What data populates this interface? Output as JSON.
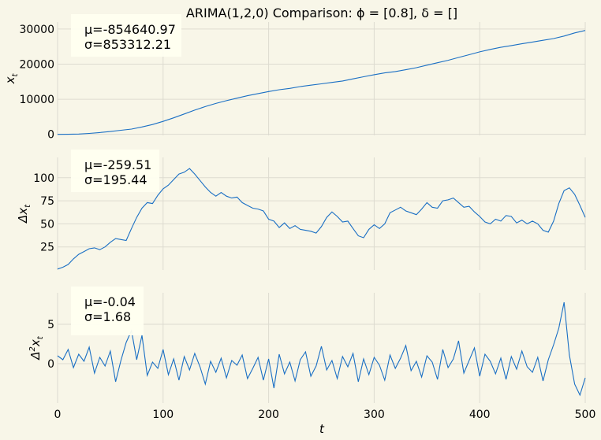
{
  "figure": {
    "title": "ARIMA(1,2,0) Comparison: ϕ = [0.8], δ = []",
    "xlabel": "t"
  },
  "chart_data": [
    {
      "type": "line",
      "ylabel": "x_t",
      "xlim": [
        0,
        500
      ],
      "ylim": [
        -300,
        32000
      ],
      "yticks": [
        0,
        10000,
        20000,
        30000
      ],
      "stats": [
        "μ=-854640.97",
        "σ=853312.21"
      ],
      "series": [
        {
          "color": "#1a6fc4",
          "x": [
            0,
            10,
            20,
            30,
            40,
            50,
            60,
            70,
            80,
            90,
            100,
            110,
            120,
            130,
            140,
            150,
            160,
            170,
            180,
            190,
            200,
            210,
            220,
            230,
            240,
            250,
            260,
            270,
            280,
            290,
            300,
            310,
            320,
            330,
            340,
            350,
            360,
            370,
            380,
            390,
            400,
            410,
            420,
            430,
            440,
            450,
            460,
            470,
            480,
            490,
            500
          ],
          "y": [
            0,
            20,
            80,
            250,
            500,
            800,
            1150,
            1500,
            2100,
            2800,
            3700,
            4700,
            5800,
            6900,
            7900,
            8800,
            9600,
            10300,
            11000,
            11600,
            12200,
            12700,
            13100,
            13600,
            14000,
            14400,
            14800,
            15200,
            15800,
            16400,
            17000,
            17500,
            17900,
            18400,
            19000,
            19700,
            20400,
            21100,
            21900,
            22700,
            23500,
            24200,
            24800,
            25300,
            25800,
            26300,
            26800,
            27300,
            28000,
            28900,
            29600
          ]
        }
      ]
    },
    {
      "type": "line",
      "ylabel": "Δx_t",
      "xlim": [
        0,
        500
      ],
      "ylim": [
        0,
        122
      ],
      "yticks": [
        25,
        50,
        75,
        100
      ],
      "stats": [
        "μ=-259.51",
        "σ=195.44"
      ],
      "series": [
        {
          "color": "#1a6fc4",
          "x": [
            0,
            5,
            10,
            15,
            20,
            25,
            30,
            35,
            40,
            45,
            50,
            55,
            60,
            65,
            70,
            75,
            80,
            85,
            90,
            95,
            100,
            105,
            110,
            115,
            120,
            125,
            130,
            135,
            140,
            145,
            150,
            155,
            160,
            165,
            170,
            175,
            180,
            185,
            190,
            195,
            200,
            205,
            210,
            215,
            220,
            225,
            230,
            235,
            240,
            245,
            250,
            255,
            260,
            265,
            270,
            275,
            280,
            285,
            290,
            295,
            300,
            305,
            310,
            315,
            320,
            325,
            330,
            335,
            340,
            345,
            350,
            355,
            360,
            365,
            370,
            375,
            380,
            385,
            390,
            395,
            400,
            405,
            410,
            415,
            420,
            425,
            430,
            435,
            440,
            445,
            450,
            455,
            460,
            465,
            470,
            475,
            480,
            485,
            490,
            495,
            500
          ],
          "y": [
            1,
            3,
            6,
            12,
            17,
            20,
            23,
            24,
            22,
            25,
            30,
            34,
            33,
            32,
            45,
            57,
            67,
            73,
            72,
            81,
            88,
            92,
            98,
            104,
            106,
            110,
            104,
            97,
            90,
            84,
            80,
            84,
            80,
            78,
            79,
            73,
            70,
            67,
            66,
            64,
            55,
            53,
            46,
            51,
            45,
            48,
            44,
            43,
            42,
            40,
            47,
            57,
            63,
            58,
            52,
            53,
            45,
            37,
            35,
            44,
            49,
            45,
            50,
            62,
            65,
            68,
            64,
            62,
            60,
            66,
            73,
            68,
            67,
            75,
            76,
            78,
            73,
            68,
            69,
            63,
            58,
            52,
            50,
            55,
            53,
            59,
            58,
            51,
            54,
            50,
            53,
            50,
            43,
            41,
            53,
            72,
            86,
            89,
            82,
            70,
            57
          ]
        }
      ]
    },
    {
      "type": "line",
      "ylabel": "Δ²x_t",
      "xlim": [
        0,
        500
      ],
      "ylim": [
        -5,
        9
      ],
      "yticks": [
        0,
        5
      ],
      "stats": [
        "μ=-0.04",
        "σ=1.68"
      ],
      "series": [
        {
          "color": "#1a6fc4",
          "x": [
            0,
            5,
            10,
            15,
            20,
            25,
            30,
            35,
            40,
            45,
            50,
            55,
            60,
            65,
            70,
            75,
            80,
            85,
            90,
            95,
            100,
            105,
            110,
            115,
            120,
            125,
            130,
            135,
            140,
            145,
            150,
            155,
            160,
            165,
            170,
            175,
            180,
            185,
            190,
            195,
            200,
            205,
            210,
            215,
            220,
            225,
            230,
            235,
            240,
            245,
            250,
            255,
            260,
            265,
            270,
            275,
            280,
            285,
            290,
            295,
            300,
            305,
            310,
            315,
            320,
            325,
            330,
            335,
            340,
            345,
            350,
            355,
            360,
            365,
            370,
            375,
            380,
            385,
            390,
            395,
            400,
            405,
            410,
            415,
            420,
            425,
            430,
            435,
            440,
            445,
            450,
            455,
            460,
            465,
            470,
            475,
            480,
            485,
            490,
            495,
            500
          ],
          "y": [
            1,
            0.5,
            1.8,
            -0.5,
            1.2,
            0.3,
            2.1,
            -1.2,
            0.8,
            -0.3,
            1.6,
            -2.3,
            0.4,
            2.7,
            4.2,
            0.5,
            3.6,
            -1.5,
            0.2,
            -0.6,
            1.8,
            -1.4,
            0.6,
            -2.1,
            0.9,
            -0.8,
            1.3,
            -0.4,
            -2.6,
            0.3,
            -1.1,
            0.7,
            -1.8,
            0.4,
            -0.2,
            1.1,
            -1.9,
            -0.6,
            0.8,
            -2.1,
            0.6,
            -3.1,
            1.2,
            -1.3,
            0.2,
            -2.2,
            0.5,
            1.5,
            -1.6,
            -0.3,
            2.2,
            -0.8,
            0.4,
            -1.9,
            0.9,
            -0.4,
            1.3,
            -2.3,
            0.6,
            -1.4,
            0.8,
            -0.2,
            -2.1,
            1.1,
            -0.6,
            0.7,
            2.3,
            -0.9,
            0.3,
            -1.7,
            1.0,
            0.2,
            -2.0,
            1.8,
            -0.5,
            0.6,
            2.9,
            -1.2,
            0.4,
            2.0,
            -1.6,
            1.2,
            0.3,
            -1.3,
            0.7,
            -2.0,
            0.9,
            -0.7,
            1.6,
            -0.4,
            -1.1,
            0.8,
            -2.2,
            0.5,
            2.4,
            4.5,
            7.8,
            1.1,
            -2.6,
            -4.0,
            -1.8
          ]
        }
      ]
    }
  ]
}
